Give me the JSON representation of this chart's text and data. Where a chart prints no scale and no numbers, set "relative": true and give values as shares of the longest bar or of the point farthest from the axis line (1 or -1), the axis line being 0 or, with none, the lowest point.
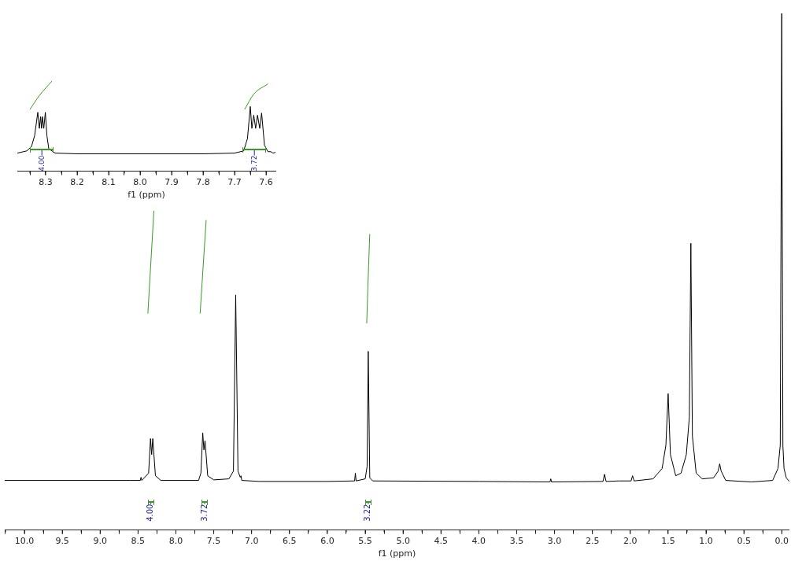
{
  "chart_data": [
    {
      "type": "line",
      "relative": true,
      "xlabel": "f1 (ppm)",
      "xlim": [
        8.39,
        7.57
      ],
      "xticks": [
        {
          "value": 8.35,
          "label": null
        },
        {
          "value": 8.3,
          "label": "8.3"
        },
        {
          "value": 8.25,
          "label": null
        },
        {
          "value": 8.2,
          "label": "8.2"
        },
        {
          "value": 8.15,
          "label": null
        },
        {
          "value": 8.1,
          "label": "8.1"
        },
        {
          "value": 8.05,
          "label": null
        },
        {
          "value": 8.0,
          "label": "8.0"
        },
        {
          "value": 7.95,
          "label": null
        },
        {
          "value": 7.9,
          "label": "7.9"
        },
        {
          "value": 7.85,
          "label": null
        },
        {
          "value": 7.8,
          "label": "7.8"
        },
        {
          "value": 7.75,
          "label": null
        },
        {
          "value": 7.7,
          "label": "7.7"
        },
        {
          "value": 7.65,
          "label": null
        },
        {
          "value": 7.6,
          "label": "7.6"
        }
      ],
      "series": [
        {
          "color": "#000000",
          "x": [
            8.39,
            8.36,
            8.345,
            8.335,
            8.325,
            8.32,
            8.316,
            8.313,
            8.31,
            8.306,
            8.301,
            8.296,
            8.29,
            8.27,
            8.2,
            8.0,
            7.8,
            7.7,
            7.671,
            7.659,
            7.65,
            7.645,
            7.639,
            7.633,
            7.627,
            7.62,
            7.614,
            7.605,
            7.594,
            7.585,
            7.578,
            7.57
          ],
          "values": [
            0.201,
            0.225,
            0.274,
            0.395,
            0.653,
            0.475,
            0.605,
            0.475,
            0.605,
            0.475,
            0.653,
            0.395,
            0.249,
            0.201,
            0.193,
            0.193,
            0.193,
            0.201,
            0.225,
            0.362,
            0.718,
            0.475,
            0.621,
            0.475,
            0.621,
            0.475,
            0.645,
            0.29,
            0.217,
            0.217,
            0.201,
            0.209
          ]
        },
        {
          "color": "#3a9a24",
          "x": [
            8.35,
            8.32,
            8.28
          ],
          "values": [
            0.685,
            0.839,
            1.0
          ]
        },
        {
          "color": "#3a9a24",
          "x": [
            7.668,
            7.639,
            7.594
          ],
          "values": [
            0.685,
            0.855,
            0.968
          ]
        }
      ],
      "annotations": [
        {
          "text": "4.00",
          "x": 8.312
        },
        {
          "text": "3.72",
          "x": 7.637
        }
      ]
    },
    {
      "type": "line",
      "relative": true,
      "xlabel": "f1 (ppm)",
      "xlim": [
        10.26,
        -0.1
      ],
      "xticks": [
        {
          "value": 10.25,
          "label": null
        },
        {
          "value": 10,
          "label": "10.0"
        },
        {
          "value": 9.75,
          "label": null
        },
        {
          "value": 9.5,
          "label": "9.5"
        },
        {
          "value": 9.25,
          "label": null
        },
        {
          "value": 9,
          "label": "9.0"
        },
        {
          "value": 8.75,
          "label": null
        },
        {
          "value": 8.5,
          "label": "8.5"
        },
        {
          "value": 8.25,
          "label": null
        },
        {
          "value": 8,
          "label": "8.0"
        },
        {
          "value": 7.75,
          "label": null
        },
        {
          "value": 7.5,
          "label": "7.5"
        },
        {
          "value": 7.25,
          "label": null
        },
        {
          "value": 7,
          "label": "7.0"
        },
        {
          "value": 6.75,
          "label": null
        },
        {
          "value": 6.5,
          "label": "6.5"
        },
        {
          "value": 6.25,
          "label": null
        },
        {
          "value": 6,
          "label": "6.0"
        },
        {
          "value": 5.75,
          "label": null
        },
        {
          "value": 5.5,
          "label": "5.5"
        },
        {
          "value": 5.25,
          "label": null
        },
        {
          "value": 5,
          "label": "5.0"
        },
        {
          "value": 4.75,
          "label": null
        },
        {
          "value": 4.5,
          "label": "4.5"
        },
        {
          "value": 4.25,
          "label": null
        },
        {
          "value": 4,
          "label": "4.0"
        },
        {
          "value": 3.75,
          "label": null
        },
        {
          "value": 3.5,
          "label": "3.5"
        },
        {
          "value": 3.25,
          "label": null
        },
        {
          "value": 3,
          "label": "3.0"
        },
        {
          "value": 2.75,
          "label": null
        },
        {
          "value": 2.5,
          "label": "2.5"
        },
        {
          "value": 2.25,
          "label": null
        },
        {
          "value": 2,
          "label": "2.0"
        },
        {
          "value": 1.75,
          "label": null
        },
        {
          "value": 1.5,
          "label": "1.5"
        },
        {
          "value": 1.25,
          "label": null
        },
        {
          "value": 1,
          "label": "1.0"
        },
        {
          "value": 0.75,
          "label": null
        },
        {
          "value": 0.5,
          "label": "0.5"
        },
        {
          "value": 0.25,
          "label": null
        },
        {
          "value": 0,
          "label": "0.0"
        }
      ],
      "series": [
        {
          "color": "#000000",
          "x": [
            10.26,
            8.6,
            8.47,
            8.46,
            8.45,
            8.36,
            8.335,
            8.32,
            8.305,
            8.27,
            8.2,
            7.7,
            7.67,
            7.645,
            7.63,
            7.615,
            7.58,
            7.5,
            7.3,
            7.24,
            7.21,
            7.18,
            7.15,
            7.14,
            7.13,
            6.9,
            6.0,
            5.64,
            5.63,
            5.62,
            5.5,
            5.475,
            5.46,
            5.44,
            5.4,
            4.0,
            3.06,
            3.05,
            3.04,
            2.36,
            2.34,
            2.32,
            2.15,
            1.99,
            1.97,
            1.95,
            1.7,
            1.58,
            1.53,
            1.5,
            1.47,
            1.4,
            1.33,
            1.26,
            1.22,
            1.2,
            1.18,
            1.13,
            1.05,
            0.9,
            0.84,
            0.82,
            0.8,
            0.74,
            0.4,
            0.12,
            0.05,
            0.02,
            0.0,
            -0.015,
            -0.03,
            -0.06,
            -0.1
          ],
          "values": [
            0.096,
            0.096,
            0.096,
            0.102,
            0.096,
            0.11,
            0.177,
            0.146,
            0.177,
            0.105,
            0.096,
            0.096,
            0.11,
            0.188,
            0.155,
            0.173,
            0.105,
            0.097,
            0.099,
            0.114,
            0.455,
            0.114,
            0.102,
            0.105,
            0.096,
            0.094,
            0.094,
            0.095,
            0.11,
            0.095,
            0.099,
            0.123,
            0.346,
            0.101,
            0.095,
            0.094,
            0.093,
            0.099,
            0.093,
            0.094,
            0.108,
            0.094,
            0.095,
            0.095,
            0.105,
            0.095,
            0.099,
            0.119,
            0.164,
            0.264,
            0.146,
            0.105,
            0.11,
            0.146,
            0.219,
            0.555,
            0.182,
            0.11,
            0.099,
            0.101,
            0.114,
            0.128,
            0.114,
            0.096,
            0.093,
            0.096,
            0.119,
            0.164,
            1.0,
            0.164,
            0.119,
            0.101,
            0.094
          ]
        },
        {
          "color": "#3a9a24",
          "x": [
            8.37,
            8.33,
            8.29
          ],
          "values": [
            0.419,
            0.519,
            0.618
          ]
        },
        {
          "color": "#3a9a24",
          "x": [
            7.68,
            7.64,
            7.6
          ],
          "values": [
            0.419,
            0.51,
            0.6
          ]
        },
        {
          "color": "#3a9a24",
          "x": [
            5.48,
            5.46,
            5.44
          ],
          "values": [
            0.4,
            0.491,
            0.573
          ]
        }
      ],
      "annotations": [
        {
          "text": "4.00",
          "x": 8.33
        },
        {
          "text": "3.72",
          "x": 7.62
        },
        {
          "text": "3.22",
          "x": 5.46
        }
      ]
    }
  ]
}
